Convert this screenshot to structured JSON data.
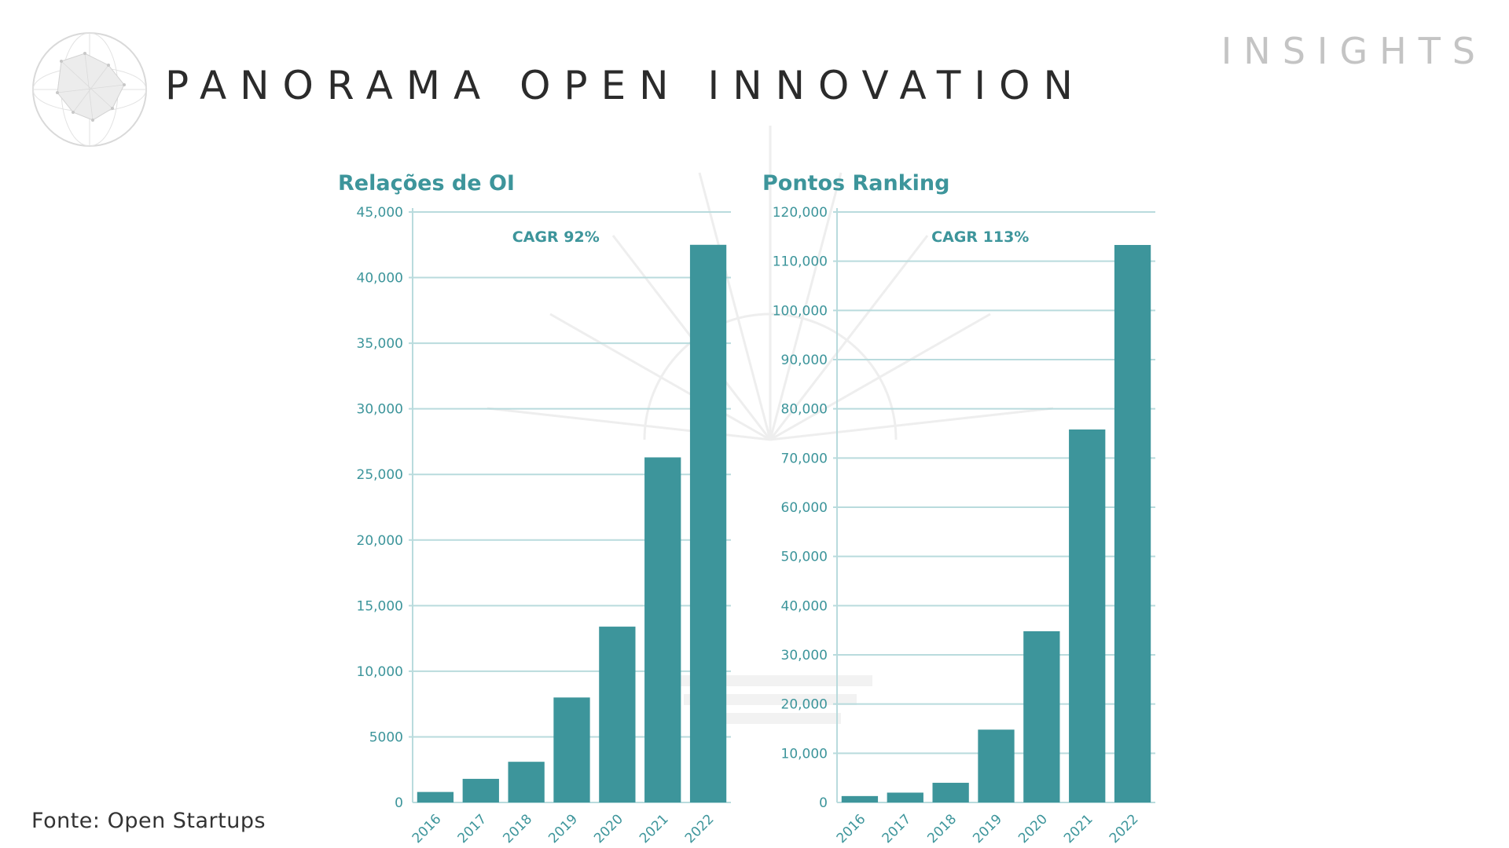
{
  "header": {
    "title": "PANORAMA OPEN INNOVATION",
    "brand": "INSIGHTS"
  },
  "footer": {
    "source": "Fonte: Open Startups"
  },
  "colors": {
    "bar": "#3d959b",
    "title_text": "#3d959b",
    "axis_text": "#3d959b",
    "grid": "#b9dbdd"
  },
  "chart_data": [
    {
      "type": "bar",
      "title": "Relações de OI",
      "annotation": "CAGR 92%",
      "categories": [
        "2016",
        "2017",
        "2018",
        "2019",
        "2020",
        "2021",
        "2022"
      ],
      "values": [
        800,
        1800,
        3100,
        8000,
        13400,
        26300,
        42500
      ],
      "ylim": [
        0,
        45000
      ],
      "yticks": [
        0,
        5000,
        10000,
        15000,
        20000,
        25000,
        30000,
        35000,
        40000,
        45000
      ],
      "ytick_labels": [
        "0",
        "5000",
        "10,000",
        "15,000",
        "20,000",
        "25,000",
        "30,000",
        "35,000",
        "40,000",
        "45,000"
      ],
      "grid": true,
      "xlabel": "",
      "ylabel": ""
    },
    {
      "type": "bar",
      "title": "Pontos Ranking",
      "annotation": "CAGR 113%",
      "categories": [
        "2016",
        "2017",
        "2018",
        "2019",
        "2020",
        "2021",
        "2022"
      ],
      "values": [
        1300,
        2000,
        4000,
        14800,
        34800,
        75800,
        113300
      ],
      "ylim": [
        0,
        120000
      ],
      "yticks": [
        0,
        10000,
        20000,
        30000,
        40000,
        50000,
        60000,
        70000,
        80000,
        90000,
        100000,
        110000,
        120000
      ],
      "ytick_labels": [
        "0",
        "10,000",
        "20,000",
        "30,000",
        "40,000",
        "50,000",
        "60,000",
        "70,000",
        "80,000",
        "90,000",
        "100,000",
        "110,000",
        "120,000"
      ],
      "grid": true,
      "xlabel": "",
      "ylabel": ""
    }
  ]
}
